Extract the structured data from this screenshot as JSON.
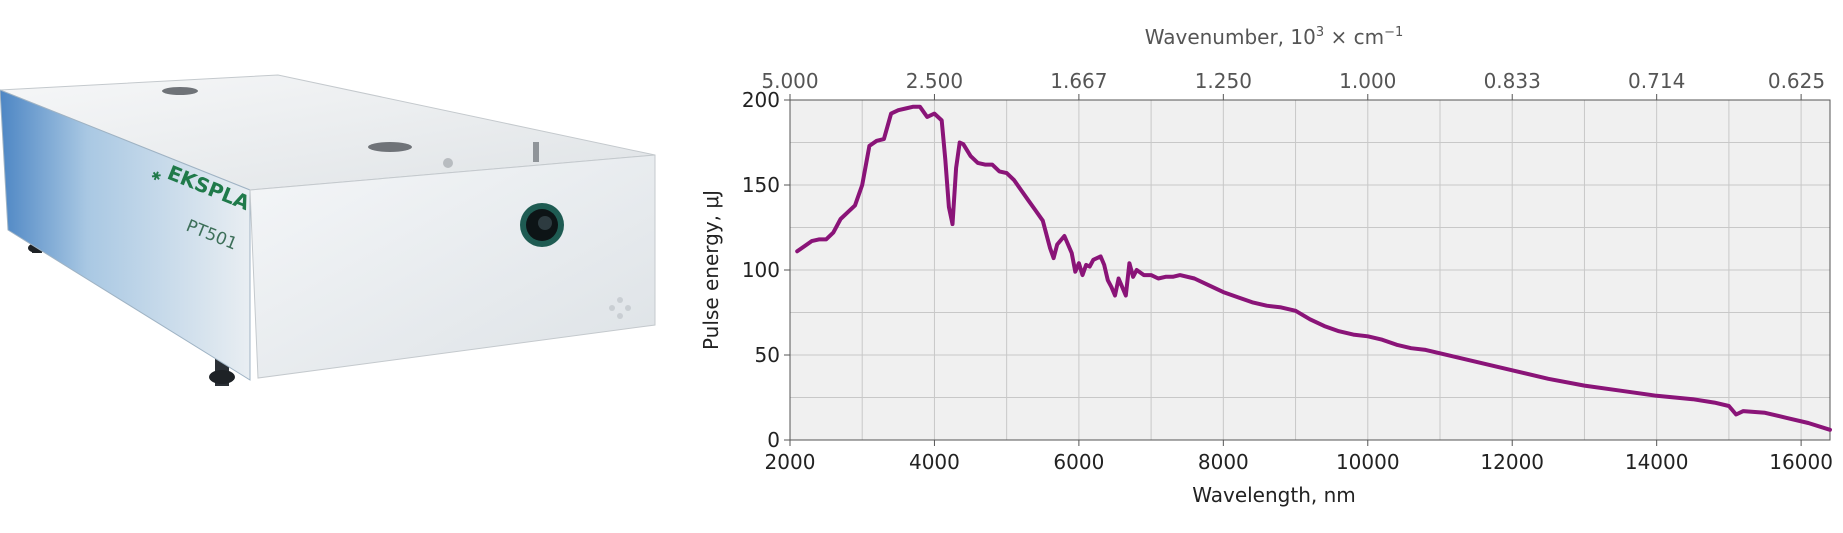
{
  "product": {
    "brand": "EKSPLA",
    "model": "PT501"
  },
  "colors": {
    "series": "#8a1478",
    "plot_background": "#f0f0f0",
    "grid": "#c8c8c8",
    "brand_green": "#1f7a4a"
  },
  "chart_data": {
    "type": "line",
    "xlabel": "Wavelength, nm",
    "ylabel": "Pulse energy, μJ",
    "top_axis_label_base": "Wavenumber, 10",
    "top_axis_label_exp": "3",
    "top_axis_label_unit": " × cm",
    "top_axis_label_unit_exp": "−1",
    "xlim": [
      2000,
      16400
    ],
    "ylim": [
      0,
      200
    ],
    "x_ticks": [
      "2000",
      "4000",
      "6000",
      "8000",
      "10000",
      "12000",
      "14000",
      "16000"
    ],
    "y_ticks": [
      "0",
      "50",
      "100",
      "150",
      "200"
    ],
    "top_ticks": [
      "5.000",
      "2.500",
      "1.667",
      "1.250",
      "1.000",
      "0.833",
      "0.714",
      "0.625"
    ],
    "top_tick_wavelengths": [
      2000,
      4000,
      6000,
      8000,
      10000,
      12000,
      14000,
      16000
    ],
    "grid": true,
    "series": [
      {
        "x": [
          2100,
          2200,
          2300,
          2400,
          2500,
          2600,
          2700,
          2800,
          2900,
          3000,
          3100,
          3200,
          3300,
          3400,
          3500,
          3600,
          3700,
          3800,
          3900,
          4000,
          4100,
          4150,
          4200,
          4250,
          4300,
          4350,
          4400,
          4500,
          4600,
          4700,
          4800,
          4900,
          5000,
          5100,
          5200,
          5300,
          5400,
          5500,
          5600,
          5650,
          5700,
          5800,
          5900,
          5950,
          6000,
          6050,
          6100,
          6150,
          6200,
          6300,
          6350,
          6400,
          6450,
          6500,
          6550,
          6600,
          6650,
          6700,
          6750,
          6800,
          6900,
          7000,
          7100,
          7200,
          7300,
          7400,
          7600,
          7800,
          8000,
          8200,
          8400,
          8600,
          8800,
          9000,
          9200,
          9400,
          9600,
          9800,
          10000,
          10200,
          10400,
          10600,
          10800,
          11000,
          11500,
          12000,
          12500,
          13000,
          13500,
          14000,
          14500,
          14800,
          15000,
          15100,
          15200,
          15500,
          15800,
          16100,
          16400
        ],
        "y": [
          111,
          114,
          117,
          118,
          118,
          122,
          130,
          134,
          138,
          150,
          173,
          176,
          177,
          192,
          194,
          195,
          196,
          196,
          190,
          192,
          188,
          165,
          137,
          127,
          160,
          175,
          174,
          167,
          163,
          162,
          162,
          158,
          157,
          153,
          147,
          141,
          135,
          129,
          113,
          107,
          115,
          120,
          110,
          99,
          104,
          97,
          103,
          102,
          106,
          108,
          103,
          94,
          90,
          85,
          95,
          90,
          85,
          104,
          96,
          100,
          97,
          97,
          95,
          96,
          96,
          97,
          95,
          91,
          87,
          84,
          81,
          79,
          78,
          76,
          71,
          67,
          64,
          62,
          61,
          59,
          56,
          54,
          53,
          51,
          46,
          41,
          36,
          32,
          29,
          26,
          24,
          22,
          20,
          15,
          17,
          16,
          13,
          10,
          6
        ]
      }
    ]
  }
}
